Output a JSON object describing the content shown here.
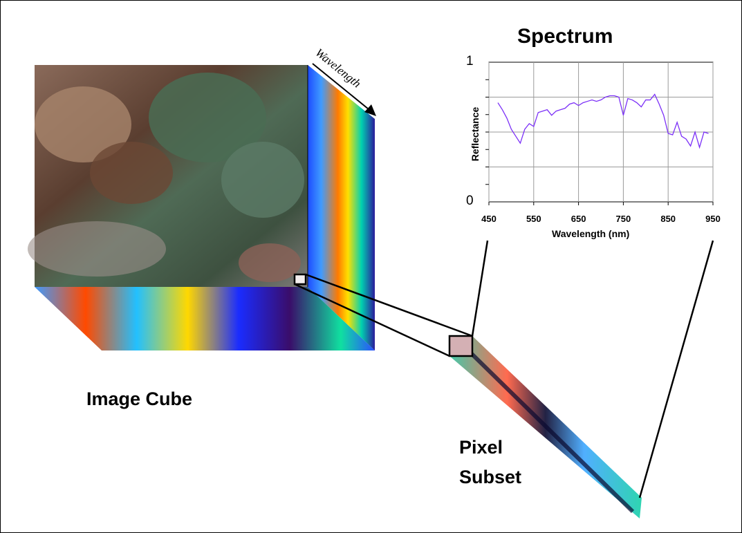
{
  "figure": {
    "title": "Spectrum",
    "cube_label": "Image Cube",
    "subset_label_line1": "Pixel",
    "subset_label_line2": "Subset",
    "cube_axis_label": "Wavelength"
  },
  "chart_data": {
    "type": "line",
    "title": "Spectrum",
    "xlabel": "Wavelength (nm)",
    "ylabel": "Reflectance",
    "xlim": [
      450,
      950
    ],
    "ylim": [
      0,
      1
    ],
    "xticks": [
      "450",
      "550",
      "650",
      "750",
      "850",
      "950"
    ],
    "yticks": [
      "0",
      "1"
    ],
    "grid": true,
    "colors": {
      "line": "#7b2ff7"
    },
    "x": [
      470,
      480,
      490,
      500,
      510,
      520,
      530,
      540,
      550,
      560,
      570,
      580,
      590,
      600,
      610,
      620,
      630,
      640,
      650,
      660,
      670,
      680,
      690,
      700,
      710,
      720,
      730,
      740,
      750,
      760,
      770,
      780,
      790,
      800,
      810,
      820,
      830,
      840,
      850,
      860,
      870,
      880,
      890,
      900,
      910,
      920,
      930,
      940
    ],
    "values": [
      0.71,
      0.66,
      0.6,
      0.52,
      0.47,
      0.42,
      0.52,
      0.56,
      0.54,
      0.64,
      0.65,
      0.66,
      0.62,
      0.65,
      0.66,
      0.67,
      0.7,
      0.71,
      0.69,
      0.71,
      0.72,
      0.73,
      0.72,
      0.73,
      0.75,
      0.76,
      0.76,
      0.75,
      0.62,
      0.74,
      0.73,
      0.71,
      0.68,
      0.73,
      0.73,
      0.77,
      0.7,
      0.62,
      0.49,
      0.48,
      0.57,
      0.47,
      0.45,
      0.4,
      0.5,
      0.39,
      0.5,
      0.49
    ]
  }
}
